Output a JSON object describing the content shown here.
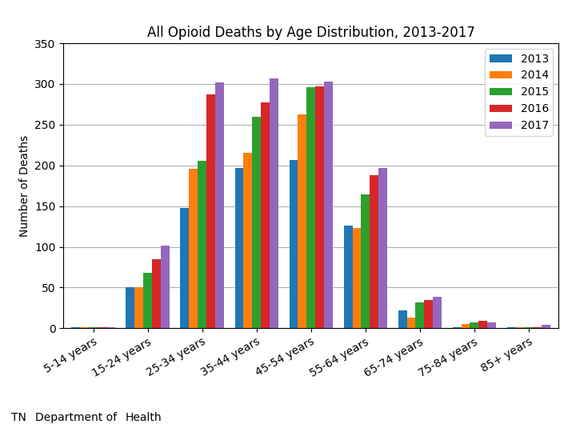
{
  "chart_data": {
    "type": "bar",
    "title": "All Opioid Deaths by Age Distribution, 2013-2017",
    "y_label": "Number of Deaths",
    "categories": [
      "5-14 years",
      "15-24 years",
      "25-34 years",
      "35-44 years",
      "45-54 years",
      "55-64 years",
      "65-74 years",
      "75-84 years",
      "85+ years"
    ],
    "series": [
      {
        "name": "2013",
        "values": [
          1,
          50,
          148,
          197,
          207,
          126,
          22,
          1,
          1
        ]
      },
      {
        "name": "2014",
        "values": [
          1,
          50,
          196,
          215,
          263,
          123,
          13,
          5,
          1
        ]
      },
      {
        "name": "2015",
        "values": [
          1,
          68,
          206,
          260,
          296,
          164,
          32,
          7,
          1
        ]
      },
      {
        "name": "2016",
        "values": [
          1,
          85,
          287,
          277,
          297,
          188,
          35,
          9,
          1
        ]
      },
      {
        "name": "2017",
        "values": [
          1,
          102,
          302,
          307,
          303,
          197,
          39,
          7,
          4
        ]
      }
    ],
    "ylim": [
      0,
      350
    ],
    "yticks": [
      0,
      50,
      100,
      150,
      200,
      250,
      300,
      350
    ],
    "grid": true,
    "legend": "upper right",
    "annotations": [
      "TN",
      "Department of",
      "Health"
    ]
  }
}
